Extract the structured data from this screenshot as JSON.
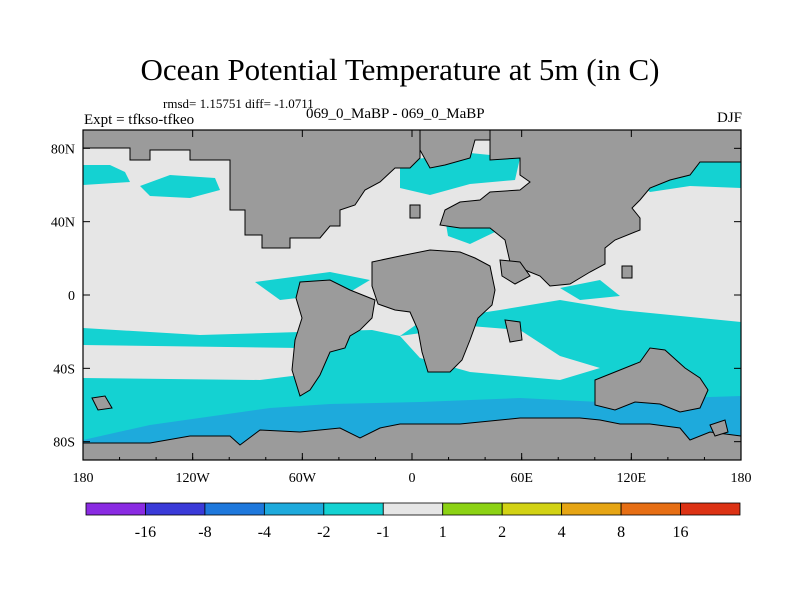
{
  "chart_data": {
    "type": "heatmap",
    "title": "Ocean Potential Temperature at 5m (in C)",
    "stats": {
      "label": "rmsd= 1.15751 diff= -1.0711",
      "rmsd": 1.15751,
      "diff": -1.0711
    },
    "experiment_label": "Expt = tfkso-tfkeo",
    "center_label": "069_0_MaBP - 069_0_MaBP",
    "season": "DJF",
    "xlim": [
      -180,
      180
    ],
    "ylim": [
      -90,
      90
    ],
    "x_ticks": [
      {
        "value": -180,
        "label": "180"
      },
      {
        "value": -120,
        "label": "120W"
      },
      {
        "value": -60,
        "label": "60W"
      },
      {
        "value": 0,
        "label": "0"
      },
      {
        "value": 60,
        "label": "60E"
      },
      {
        "value": 120,
        "label": "120E"
      },
      {
        "value": 180,
        "label": "180"
      }
    ],
    "y_ticks": [
      {
        "value": 80,
        "label": "80N"
      },
      {
        "value": 40,
        "label": "40N"
      },
      {
        "value": 0,
        "label": "0"
      },
      {
        "value": -40,
        "label": "40S"
      },
      {
        "value": -80,
        "label": "80S"
      }
    ],
    "colorbar": {
      "colors": [
        "#8a2be2",
        "#3a3ad8",
        "#1e78dc",
        "#1eaadc",
        "#14d2d2",
        "#e6e6e6",
        "#8cd214",
        "#d2d214",
        "#e6a514",
        "#e66e14",
        "#dc3214"
      ],
      "levels": [
        -16,
        -8,
        -4,
        -2,
        -1,
        1,
        2,
        4,
        8,
        16
      ],
      "labels": [
        "-16",
        "-8",
        "-4",
        "-2",
        "-1",
        "1",
        "2",
        "4",
        "8",
        "16"
      ]
    },
    "land_color": "#9b9b9b",
    "background_color": "#e6e6e6",
    "cool_regions": [
      {
        "name": "southern-ocean-band",
        "value": -1.5,
        "lon": [
          -180,
          180
        ],
        "lat": [
          -68,
          -18
        ]
      },
      {
        "name": "southern-polar-strip",
        "value": -2.5,
        "lon": [
          -120,
          150
        ],
        "lat": [
          -80,
          -62
        ]
      },
      {
        "name": "north-pacific-west",
        "value": -1.5,
        "lon": [
          -180,
          -165
        ],
        "lat": [
          60,
          70
        ]
      },
      {
        "name": "north-pacific-center",
        "value": -1.5,
        "lon": [
          -155,
          -115
        ],
        "lat": [
          55,
          62
        ]
      },
      {
        "name": "north-atlantic",
        "value": -1.5,
        "lon": [
          -40,
          5
        ],
        "lat": [
          60,
          82
        ]
      },
      {
        "name": "arctic-siberian",
        "value": -1.5,
        "lon": [
          95,
          180
        ],
        "lat": [
          60,
          70
        ]
      },
      {
        "name": "mediterranean",
        "value": -1.5,
        "lon": [
          5,
          40
        ],
        "lat": [
          30,
          45
        ]
      },
      {
        "name": "tropical-atlantic",
        "value": -1.5,
        "lon": [
          -70,
          -10
        ],
        "lat": [
          0,
          8
        ]
      },
      {
        "name": "east-equatorial-indian",
        "value": -1.5,
        "lon": [
          140,
          170
        ],
        "lat": [
          -18,
          -8
        ]
      }
    ]
  }
}
